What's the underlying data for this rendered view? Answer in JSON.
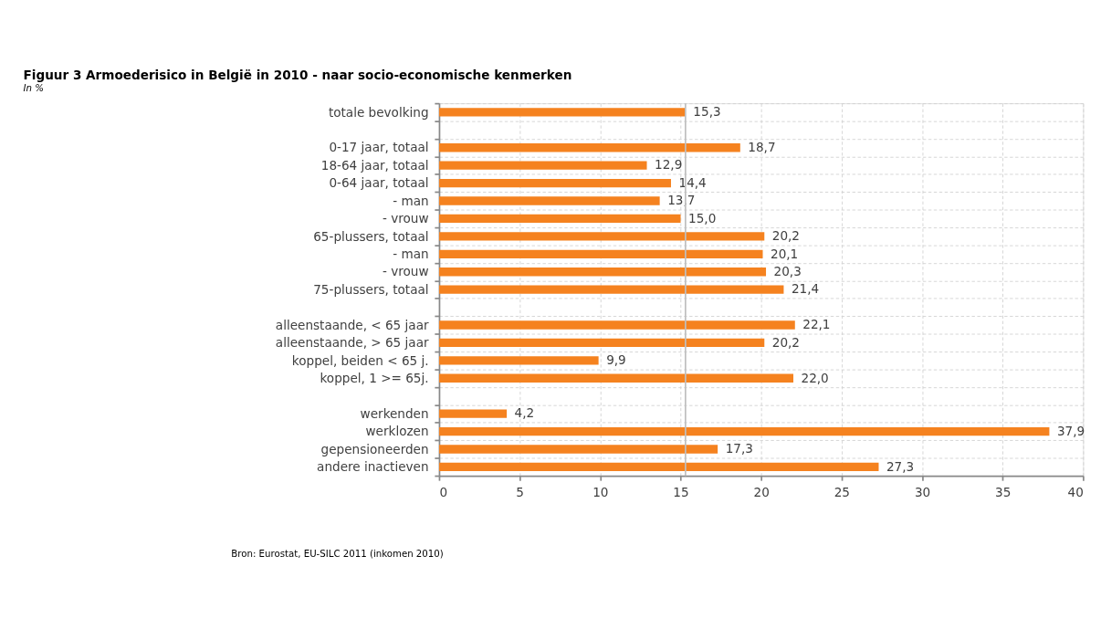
{
  "chart_data": {
    "type": "bar",
    "orientation": "horizontal",
    "title": "Figuur 3    Armoederisico in België in 2010 - naar socio-economische kenmerken",
    "subtitle": "In %",
    "categories": [
      "totale bevolking",
      null,
      "0-17 jaar, totaal",
      "18-64 jaar, totaal",
      "0-64 jaar, totaal",
      "- man",
      "- vrouw",
      "65-plussers, totaal",
      "- man",
      "- vrouw",
      "75-plussers, totaal",
      null,
      "alleenstaande, < 65 jaar",
      "alleenstaande, > 65 jaar",
      "koppel, beiden < 65 j.",
      "koppel, 1 >= 65j.",
      null,
      "werkenden",
      "werklozen",
      "gepensioneerden",
      "andere inactieven"
    ],
    "values": [
      15.3,
      null,
      18.7,
      12.9,
      14.4,
      13.7,
      15.0,
      20.2,
      20.1,
      20.3,
      21.4,
      null,
      22.1,
      20.2,
      9.9,
      22.0,
      null,
      4.2,
      37.9,
      17.3,
      27.3
    ],
    "value_labels": [
      "15,3",
      null,
      "18,7",
      "12,9",
      "14,4",
      "13,7",
      "15,0",
      "20,2",
      "20,1",
      "20,3",
      "21,4",
      null,
      "22,1",
      "20,2",
      "9,9",
      "22,0",
      null,
      "4,2",
      "37,9",
      "17,3",
      "27,3"
    ],
    "color": "#f5821f",
    "xlim": [
      0,
      40
    ],
    "xticks": [
      0,
      5,
      10,
      15,
      20,
      25,
      30,
      35,
      40
    ],
    "grid": true,
    "ref_lines": [
      {
        "axis": "x",
        "value": 15.3,
        "color": "#bfbfbf"
      }
    ],
    "annotations": [
      "Bron: Eurostat, EU-SILC 2011 (inkomen 2010)"
    ]
  }
}
